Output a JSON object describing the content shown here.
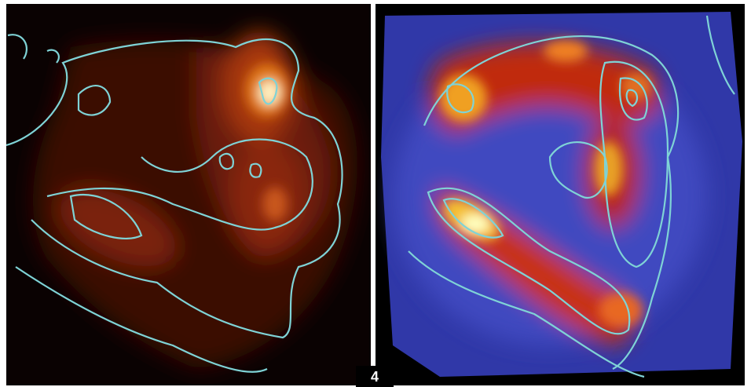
{
  "label": "4"
}
